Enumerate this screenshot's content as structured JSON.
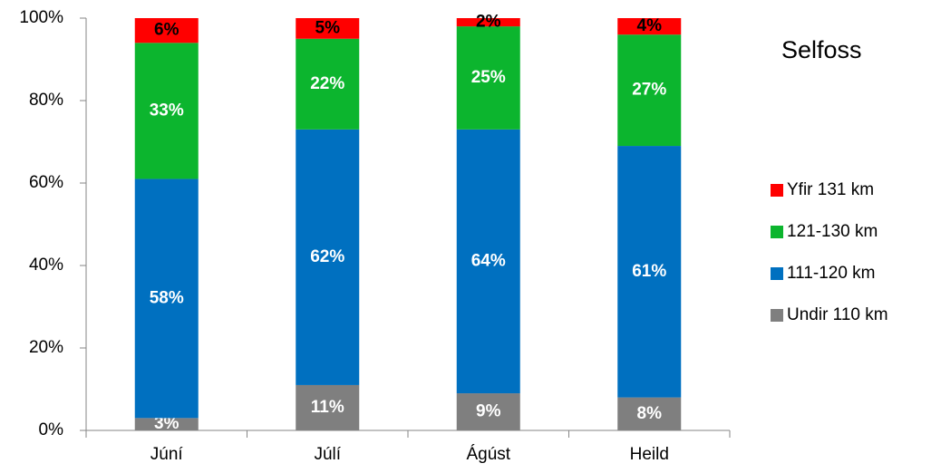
{
  "chart_data": {
    "type": "stacked_bar",
    "title": "Selfoss",
    "categories": [
      "Júní",
      "Júlí",
      "Ágúst",
      "Heild"
    ],
    "series": [
      {
        "name": "Undir 110 km",
        "color": "#7f7f7f",
        "label_color": "#ffffff",
        "values": [
          3,
          11,
          9,
          8
        ],
        "value_labels": [
          "3%",
          "11%",
          "9%",
          "8%"
        ]
      },
      {
        "name": "111-120 km",
        "color": "#0070c0",
        "label_color": "#ffffff",
        "values": [
          58,
          62,
          64,
          61
        ],
        "value_labels": [
          "58%",
          "62%",
          "64%",
          "61%"
        ]
      },
      {
        "name": "121-130 km",
        "color": "#0cb52e",
        "label_color": "#ffffff",
        "values": [
          33,
          22,
          25,
          27
        ],
        "value_labels": [
          "33%",
          "22%",
          "25%",
          "27%"
        ]
      },
      {
        "name": "Yfir 131 km",
        "color": "#ff0000",
        "label_color": "#000000",
        "values": [
          6,
          5,
          2,
          4
        ],
        "value_labels": [
          "6%",
          "5%",
          "2%",
          "4%"
        ]
      }
    ],
    "ylim": [
      0,
      100
    ],
    "yticks": [
      {
        "value": 0,
        "label": "0%"
      },
      {
        "value": 20,
        "label": "20%"
      },
      {
        "value": 40,
        "label": "40%"
      },
      {
        "value": 60,
        "label": "60%"
      },
      {
        "value": 80,
        "label": "80%"
      },
      {
        "value": 100,
        "label": "100%"
      }
    ],
    "legend": "right"
  }
}
